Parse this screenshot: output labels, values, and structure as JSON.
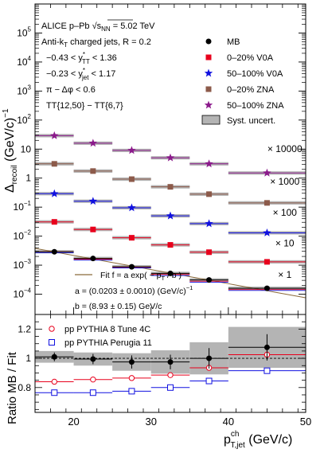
{
  "chart_data": [
    {
      "type": "scatter",
      "panel": "top",
      "yscale": "log",
      "xlim": [
        15,
        50
      ],
      "ylim": [
        2e-05,
        1000000
      ],
      "ylabel_main": "Δ",
      "ylabel_sub": "recoil",
      "ylabel_unit": "(GeV/c)",
      "ylabel_exp": "−1",
      "yticks": [
        {
          "v": 0.0001,
          "m": "10",
          "e": "−4"
        },
        {
          "v": 0.001,
          "m": "10",
          "e": "−3"
        },
        {
          "v": 0.01,
          "m": "10",
          "e": "−2"
        },
        {
          "v": 0.1,
          "m": "10",
          "e": "−1"
        },
        {
          "v": 1,
          "m": "1",
          "e": ""
        },
        {
          "v": 10,
          "m": "10",
          "e": ""
        },
        {
          "v": 100,
          "m": "10",
          "e": "2"
        },
        {
          "v": 1000,
          "m": "10",
          "e": "3"
        },
        {
          "v": 10000,
          "m": "10",
          "e": "4"
        },
        {
          "v": 100000,
          "m": "10",
          "e": "5"
        }
      ],
      "x_bins": [
        [
          15,
          20
        ],
        [
          20,
          25
        ],
        [
          25,
          30
        ],
        [
          30,
          35
        ],
        [
          35,
          40
        ],
        [
          40,
          50
        ]
      ],
      "x": [
        17.5,
        22.5,
        27.5,
        32.5,
        37.5,
        45
      ],
      "series": [
        {
          "name": "MB",
          "marker": "circle",
          "color": "#000000",
          "values": [
            0.0029,
            0.0017,
            0.00088,
            0.00052,
            0.00031,
            0.00016
          ]
        },
        {
          "name": "0–20% V0A",
          "marker": "square",
          "color": "#e8001c",
          "values": [
            0.031,
            0.017,
            0.0088,
            0.005,
            0.0028,
            0.0013
          ]
        },
        {
          "name": "50–100% V0A",
          "marker": "star",
          "color": "#1010e0",
          "values": [
            0.29,
            0.16,
            0.095,
            0.05,
            0.027,
            0.013
          ]
        },
        {
          "name": "0–20% ZNA",
          "marker": "square",
          "color": "#8c5a4a",
          "values": [
            3.1,
            1.75,
            0.92,
            0.5,
            0.28,
            0.14
          ]
        },
        {
          "name": "50–100% ZNA",
          "marker": "star",
          "color": "#8b1a8b",
          "values": [
            29,
            16,
            9.0,
            5.0,
            3.1,
            1.5
          ]
        }
      ],
      "pythia_top": [
        {
          "color": "#e8001c",
          "values": [
            0.0029,
            0.0016,
            0.00085,
            0.00048,
            0.00028,
            0.000145
          ]
        },
        {
          "color": "#1010e0",
          "values": [
            0.0027,
            0.0015,
            0.0008,
            0.00044,
            0.00026,
            0.000135
          ]
        }
      ],
      "fit": {
        "a": 0.0203,
        "b": 8.93,
        "x_range": [
          15,
          50
        ],
        "color": "#8a6a3a"
      },
      "scale_labels": [
        {
          "text": "× 10000",
          "x": 47.3,
          "y": 8.0
        },
        {
          "text": "× 1000",
          "x": 47.3,
          "y": 0.6
        },
        {
          "text": "× 100",
          "x": 47.3,
          "y": 0.05
        },
        {
          "text": "× 10",
          "x": 47.3,
          "y": 0.0045
        },
        {
          "text": "× 1",
          "x": 47.3,
          "y": 0.00036
        }
      ],
      "info_lines": [
        "ALICE p–Pb √s",
        "Anti-k",
        "−0.43 < y",
        "−0.23 < y",
        "π − Δφ < 0.6",
        "TT{12,50} − TT{6,7}"
      ],
      "info_parts": {
        "l1_sub": "NN",
        "l1_tail": " = 5.02 TeV",
        "l2_sub": "T",
        "l2_tail": " charged jets, R = 0.2",
        "l3_sup": "*",
        "l3_sub": "TT",
        "l3_tail": " < 1.36",
        "l4_sup": "*",
        "l4_sub": "jet",
        "l4_tail": " < 1.17"
      },
      "legend": {
        "entries": [
          "MB",
          "0–20% V0A",
          "50–100% V0A",
          "0–20% ZNA",
          "50–100% ZNA",
          "Syst. uncert."
        ],
        "placement": "top-right"
      },
      "fit_text": {
        "line1": "Fit f = a exp( − p",
        "line1_sub": "T",
        "line1_tail": " / b )",
        "line2": "a = (0.0203 ± 0.0010) (GeV/c)",
        "line2_sup": "−1",
        "line3": "b = (8.93 ± 0.15) GeV/c"
      }
    },
    {
      "type": "scatter",
      "panel": "bottom",
      "xlim": [
        15,
        50
      ],
      "ylim": [
        0.63,
        1.3
      ],
      "ylabel": "Ratio MB / Fit",
      "xlabel_main": "p",
      "xlabel_sup": "ch",
      "xlabel_sub": "T,jet",
      "xlabel_unit": " (GeV/c)",
      "xticks": [
        "20",
        "30",
        "40",
        "50"
      ],
      "yticks": [
        "0.8",
        "1",
        "1.2"
      ],
      "x_bins": [
        [
          15,
          20
        ],
        [
          20,
          25
        ],
        [
          25,
          30
        ],
        [
          30,
          35
        ],
        [
          35,
          40
        ],
        [
          40,
          50
        ]
      ],
      "x": [
        17.5,
        22.5,
        27.5,
        32.5,
        37.5,
        45
      ],
      "series": [
        {
          "name": "MB",
          "marker": "circle",
          "color": "#000000",
          "values": [
            1.01,
            0.995,
            0.975,
            0.975,
            1.0,
            1.075
          ],
          "errors": [
            0.03,
            0.035,
            0.045,
            0.05,
            0.07,
            0.09
          ],
          "syst": [
            0.04,
            0.045,
            0.06,
            0.08,
            0.11,
            0.14
          ]
        },
        {
          "name": "pp PYTHIA 8 Tune 4C",
          "marker": "open-circle",
          "color": "#e8001c",
          "values": [
            0.84,
            0.855,
            0.865,
            0.885,
            0.935,
            1.025
          ]
        },
        {
          "name": "pp PYTHIA Perugia 11",
          "marker": "open-square",
          "color": "#1010e0",
          "values": [
            0.765,
            0.765,
            0.775,
            0.8,
            0.845,
            0.915
          ]
        }
      ],
      "legend": {
        "entries": [
          "pp PYTHIA 8 Tune 4C",
          "pp PYTHIA Perugia 11"
        ],
        "placement": "top-left"
      }
    }
  ]
}
